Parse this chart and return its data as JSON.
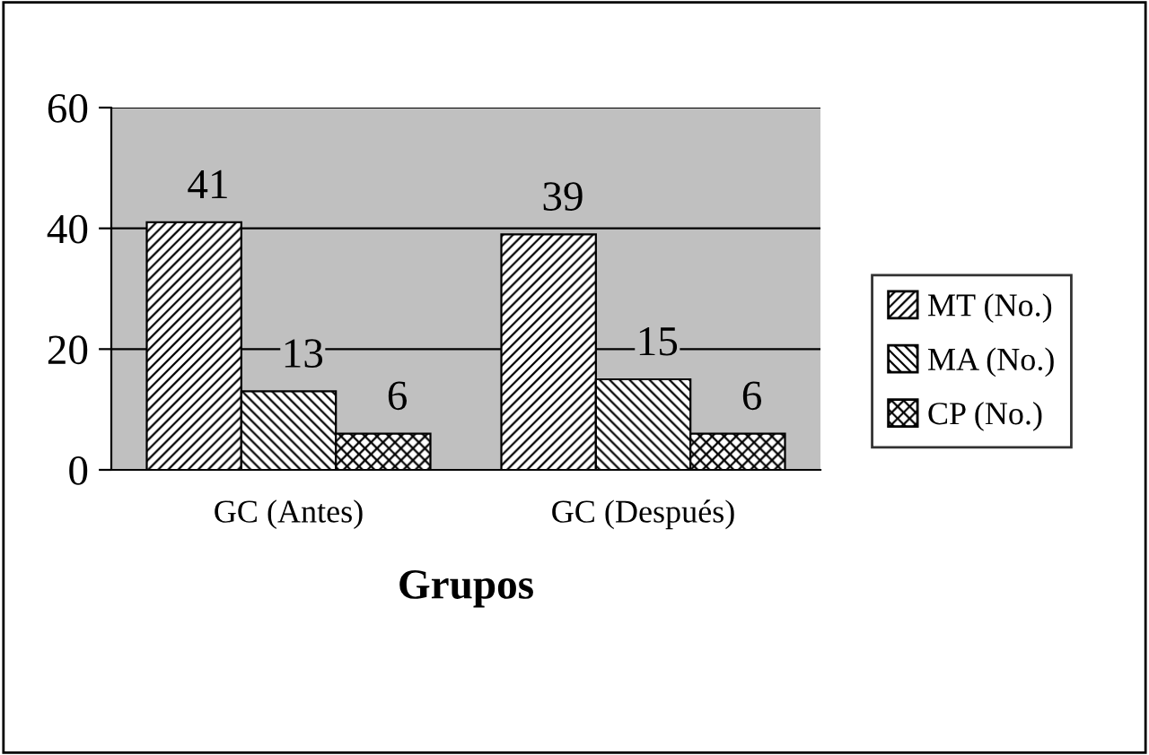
{
  "chart_data": {
    "type": "bar",
    "xlabel": "Grupos",
    "categories": [
      "GC (Antes)",
      "GC (Después)"
    ],
    "series": [
      {
        "name": "MT (No.)",
        "color": "#000000",
        "values": [
          41,
          39
        ]
      },
      {
        "name": "MA (No.)",
        "color": "#000000",
        "values": [
          13,
          15
        ]
      },
      {
        "name": "CP (No.)",
        "color": "#000000",
        "values": [
          6,
          6
        ]
      }
    ],
    "ylim": [
      0,
      60
    ],
    "yticks": [
      0,
      20,
      40,
      60
    ],
    "grid": "y",
    "legend": "right",
    "data_labels": true
  }
}
